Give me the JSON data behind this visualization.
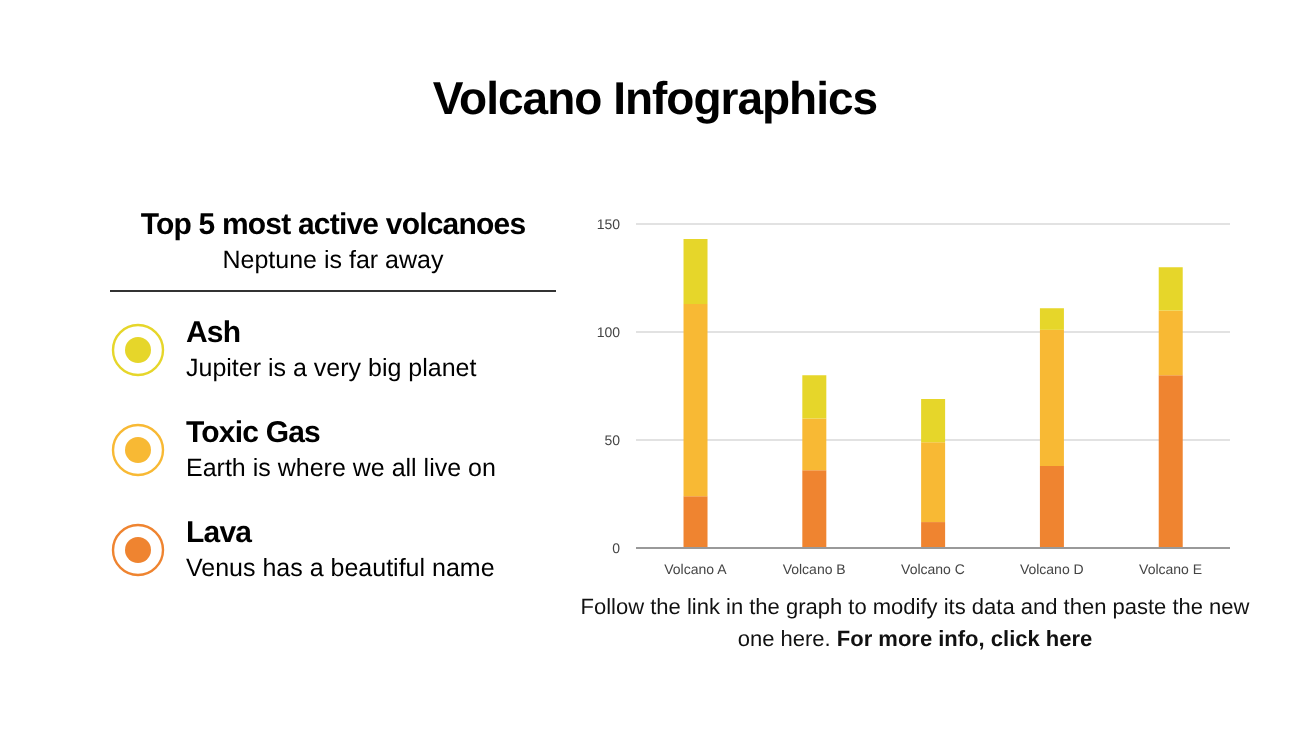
{
  "chart_data": {
    "type": "bar",
    "title": "Volcano Infographics",
    "legend_title": "Top 5 most active volcanoes",
    "categories": [
      "Volcano A",
      "Volcano B",
      "Volcano C",
      "Volcano D",
      "Volcano E"
    ],
    "stacked": true,
    "series": [
      {
        "name": "Lava",
        "color": "#ef8430",
        "values": [
          24,
          36,
          12,
          38,
          80
        ]
      },
      {
        "name": "Toxic Gas",
        "color": "#f8b934",
        "values": [
          89,
          24,
          37,
          63,
          30
        ]
      },
      {
        "name": "Ash",
        "color": "#e6d62a",
        "values": [
          30,
          20,
          20,
          10,
          20
        ]
      }
    ],
    "ylim": [
      0,
      150
    ],
    "yticks": [
      0,
      50,
      100,
      150
    ],
    "grid": "y",
    "legend": "left",
    "annotations": [
      "Neptune is far away",
      "Jupiter is a very big planet",
      "Earth is where we all live on",
      "Venus has a beautiful name",
      "Follow the link in the graph to modify its data and then paste the new one here.",
      "For more info, click here"
    ]
  }
}
